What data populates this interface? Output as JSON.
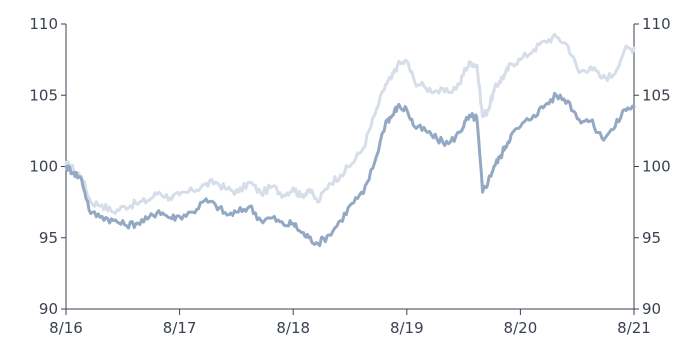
{
  "chart_data": {
    "type": "line",
    "title": "",
    "xlabel": "",
    "ylabel": "",
    "x_tick_labels": [
      "8/16",
      "8/17",
      "8/18",
      "8/19",
      "8/20",
      "8/21"
    ],
    "y_ticks": [
      90,
      95,
      100,
      105,
      110
    ],
    "ylim": [
      90,
      110
    ],
    "xlim": [
      2016.583,
      2021.583
    ],
    "y_axis_left": true,
    "y_axis_right": true,
    "grid": false,
    "legend": "none",
    "series": [
      {
        "color": "#d6dee9",
        "stroke": 3,
        "x": [
          2016.583,
          2016.65,
          2016.72,
          2016.8,
          2016.9,
          2017.0,
          2017.1,
          2017.2,
          2017.3,
          2017.4,
          2017.5,
          2017.583,
          2017.7,
          2017.8,
          2017.9,
          2018.0,
          2018.1,
          2018.2,
          2018.3,
          2018.4,
          2018.5,
          2018.583,
          2018.65,
          2018.72,
          2018.8,
          2018.9,
          2019.0,
          2019.1,
          2019.2,
          2019.3,
          2019.4,
          2019.45,
          2019.5,
          2019.583,
          2019.65,
          2019.75,
          2019.85,
          2019.95,
          2020.05,
          2020.1,
          2020.15,
          2020.2,
          2020.25,
          2020.3,
          2020.35,
          2020.4,
          2020.45,
          2020.5,
          2020.583,
          2020.7,
          2020.8,
          2020.9,
          2021.0,
          2021.1,
          2021.2,
          2021.3,
          2021.4,
          2021.5,
          2021.583
        ],
        "values": [
          100.2,
          99.8,
          99.3,
          97.5,
          97.3,
          96.8,
          97.2,
          97.4,
          97.6,
          98.2,
          97.8,
          98.0,
          98.3,
          98.7,
          98.9,
          98.4,
          98.2,
          98.9,
          98.1,
          98.6,
          98.0,
          98.5,
          97.9,
          98.4,
          97.5,
          98.8,
          99.4,
          100.2,
          101.3,
          103.6,
          105.8,
          106.2,
          107.1,
          107.4,
          106.0,
          105.5,
          105.3,
          105.2,
          105.8,
          106.9,
          107.3,
          107.1,
          103.5,
          104.0,
          105.3,
          106.0,
          106.5,
          107.2,
          107.5,
          108.2,
          108.8,
          109.1,
          108.5,
          106.6,
          107.0,
          106.2,
          106.4,
          108.2,
          108.3
        ]
      },
      {
        "color": "#93a9c3",
        "stroke": 3,
        "x": [
          2016.583,
          2016.65,
          2016.72,
          2016.8,
          2016.9,
          2017.0,
          2017.1,
          2017.2,
          2017.3,
          2017.4,
          2017.5,
          2017.583,
          2017.7,
          2017.8,
          2017.9,
          2018.0,
          2018.1,
          2018.2,
          2018.3,
          2018.4,
          2018.5,
          2018.583,
          2018.65,
          2018.72,
          2018.8,
          2018.9,
          2019.0,
          2019.1,
          2019.2,
          2019.3,
          2019.4,
          2019.45,
          2019.5,
          2019.583,
          2019.65,
          2019.75,
          2019.85,
          2019.95,
          2020.05,
          2020.1,
          2020.15,
          2020.2,
          2020.25,
          2020.3,
          2020.35,
          2020.4,
          2020.45,
          2020.5,
          2020.583,
          2020.7,
          2020.8,
          2020.9,
          2021.0,
          2021.1,
          2021.2,
          2021.3,
          2021.4,
          2021.5,
          2021.583
        ],
        "values": [
          100.0,
          99.6,
          99.1,
          96.7,
          96.5,
          96.2,
          95.9,
          96.0,
          96.3,
          96.9,
          96.4,
          96.5,
          96.8,
          97.6,
          97.3,
          96.6,
          96.8,
          97.2,
          96.2,
          96.4,
          95.9,
          96.0,
          95.4,
          95.0,
          94.6,
          95.2,
          96.2,
          97.4,
          98.1,
          100.3,
          103.2,
          103.5,
          104.2,
          104.0,
          102.8,
          102.5,
          101.9,
          101.6,
          102.4,
          103.2,
          103.5,
          103.4,
          98.2,
          99.0,
          100.0,
          100.6,
          101.4,
          102.2,
          102.8,
          103.6,
          104.3,
          105.0,
          104.6,
          103.3,
          103.2,
          102.0,
          102.6,
          104.0,
          104.2
        ]
      }
    ]
  }
}
